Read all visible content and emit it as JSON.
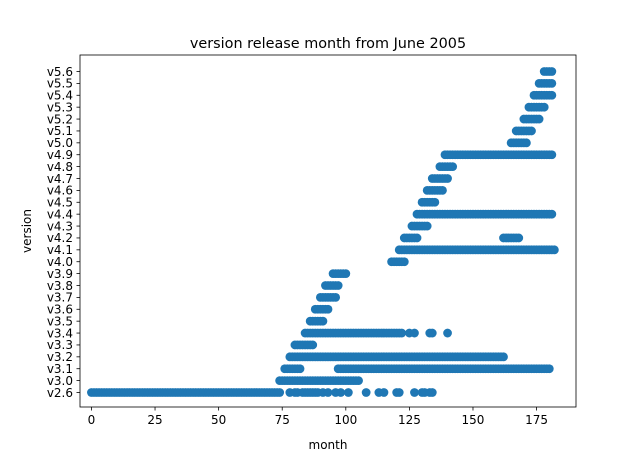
{
  "chart_data": {
    "type": "scatter",
    "title": "version release month from June 2005",
    "xlabel": "month",
    "ylabel": "version",
    "xlim": [
      -4.5,
      190.5
    ],
    "x_ticks": [
      0,
      25,
      50,
      75,
      100,
      125,
      150,
      175
    ],
    "categories": [
      "v2.6",
      "v3.0",
      "v3.1",
      "v3.2",
      "v3.3",
      "v3.4",
      "v3.5",
      "v3.6",
      "v3.7",
      "v3.8",
      "v3.9",
      "v4.0",
      "v4.1",
      "v4.2",
      "v4.3",
      "v4.4",
      "v4.5",
      "v4.6",
      "v4.7",
      "v4.8",
      "v4.9",
      "v5.0",
      "v5.1",
      "v5.2",
      "v5.3",
      "v5.4",
      "v5.5",
      "v5.6"
    ],
    "grid": false,
    "legend": "none",
    "marker_color": "#1f77b4",
    "series": [
      {
        "points": [
          {
            "version": "v2.6",
            "ranges": [
              [
                0,
                74
              ]
            ],
            "x": [
              78,
              80,
              81,
              83,
              84,
              85,
              86,
              87,
              88,
              89,
              91,
              93,
              96,
              98,
              101,
              108,
              113,
              115,
              120,
              121,
              127,
              130,
              131,
              133,
              134
            ]
          },
          {
            "version": "v3.0",
            "ranges": [
              [
                74,
                105
              ]
            ],
            "x": []
          },
          {
            "version": "v3.1",
            "ranges": [
              [
                76,
                82
              ],
              [
                97,
                180
              ]
            ],
            "x": []
          },
          {
            "version": "v3.2",
            "ranges": [
              [
                78,
                162
              ]
            ],
            "x": []
          },
          {
            "version": "v3.3",
            "ranges": [
              [
                80,
                87
              ]
            ],
            "x": []
          },
          {
            "version": "v3.4",
            "ranges": [
              [
                84,
                122
              ]
            ],
            "x": [
              125,
              127,
              133,
              134,
              140
            ]
          },
          {
            "version": "v3.5",
            "ranges": [
              [
                86,
                91
              ]
            ],
            "x": []
          },
          {
            "version": "v3.6",
            "ranges": [
              [
                88,
                93
              ]
            ],
            "x": []
          },
          {
            "version": "v3.7",
            "ranges": [
              [
                90,
                96
              ]
            ],
            "x": []
          },
          {
            "version": "v3.8",
            "ranges": [
              [
                92,
                97
              ]
            ],
            "x": []
          },
          {
            "version": "v3.9",
            "ranges": [
              [
                95,
                100
              ]
            ],
            "x": []
          },
          {
            "version": "v4.0",
            "ranges": [
              [
                118,
                123
              ]
            ],
            "x": []
          },
          {
            "version": "v4.1",
            "ranges": [
              [
                121,
                182
              ]
            ],
            "x": []
          },
          {
            "version": "v4.2",
            "ranges": [
              [
                123,
                128
              ],
              [
                162,
                168
              ]
            ],
            "x": []
          },
          {
            "version": "v4.3",
            "ranges": [
              [
                126,
                132
              ]
            ],
            "x": []
          },
          {
            "version": "v4.4",
            "ranges": [
              [
                128,
                181
              ]
            ],
            "x": []
          },
          {
            "version": "v4.5",
            "ranges": [
              [
                130,
                135
              ]
            ],
            "x": []
          },
          {
            "version": "v4.6",
            "ranges": [
              [
                132,
                138
              ]
            ],
            "x": []
          },
          {
            "version": "v4.7",
            "ranges": [
              [
                134,
                140
              ]
            ],
            "x": []
          },
          {
            "version": "v4.8",
            "ranges": [
              [
                137,
                142
              ]
            ],
            "x": []
          },
          {
            "version": "v4.9",
            "ranges": [
              [
                139,
                181
              ]
            ],
            "x": []
          },
          {
            "version": "v5.0",
            "ranges": [
              [
                165,
                171
              ]
            ],
            "x": []
          },
          {
            "version": "v5.1",
            "ranges": [
              [
                167,
                173
              ]
            ],
            "x": []
          },
          {
            "version": "v5.2",
            "ranges": [
              [
                170,
                176
              ]
            ],
            "x": []
          },
          {
            "version": "v5.3",
            "ranges": [
              [
                172,
                178
              ]
            ],
            "x": []
          },
          {
            "version": "v5.4",
            "ranges": [
              [
                174,
                181
              ]
            ],
            "x": []
          },
          {
            "version": "v5.5",
            "ranges": [
              [
                176,
                181
              ]
            ],
            "x": []
          },
          {
            "version": "v5.6",
            "ranges": [
              [
                178,
                181
              ]
            ],
            "x": []
          }
        ]
      }
    ]
  }
}
